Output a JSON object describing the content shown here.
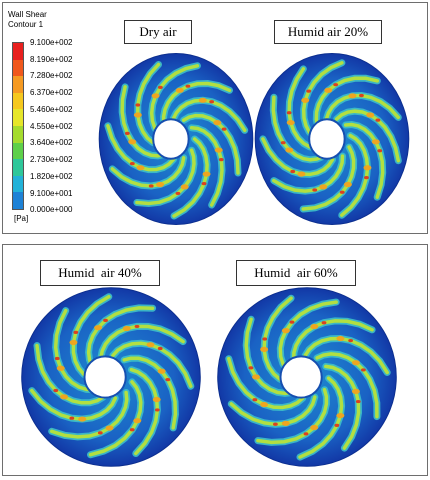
{
  "legend": {
    "title": "Wall Shear",
    "subtitle": "Contour 1",
    "unit": "[Pa]",
    "ticks": [
      "9.100e+002",
      "8.190e+002",
      "7.280e+002",
      "6.370e+002",
      "5.460e+002",
      "4.550e+002",
      "3.640e+002",
      "2.730e+002",
      "1.820e+002",
      "9.100e+001",
      "0.000e+000"
    ],
    "colors": [
      "#e8201e",
      "#f0581c",
      "#f59a22",
      "#f5c81e",
      "#e6e62a",
      "#a5dc2e",
      "#5ed04a",
      "#2ec79a",
      "#22b2d8",
      "#1e82d6",
      "#0f40b8"
    ]
  },
  "cases": {
    "dry": "Dry air",
    "humid20": "Humid air 20%",
    "humid40": "Humid  air 40%",
    "humid60": "Humid  air 60%"
  }
}
